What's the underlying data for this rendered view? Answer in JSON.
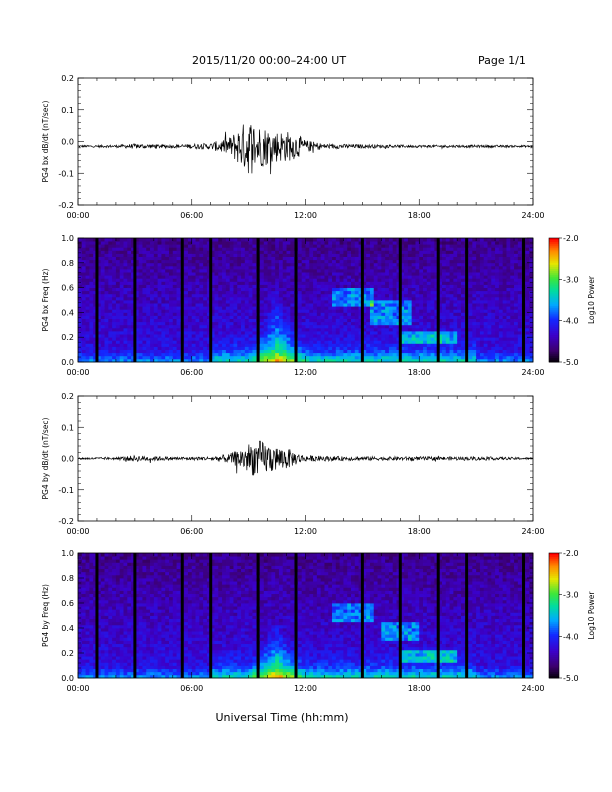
{
  "header": {
    "title": "2015/11/20  00:00–24:00 UT",
    "page": "Page 1/1"
  },
  "chart_data": [
    {
      "type": "line",
      "ylabel": "PG4 bx dB/dt (nT/sec)",
      "xlim": [
        0,
        24
      ],
      "ylim": [
        -0.2,
        0.2
      ],
      "xticks": [
        "00:00",
        "06:00",
        "12:00",
        "18:00",
        "24:00"
      ],
      "yticks": [
        "0.2",
        "0.1",
        "0.0",
        "-0.1",
        "-0.2"
      ],
      "series": [
        {
          "x": [
            0,
            2,
            3,
            5,
            7,
            8,
            8.5,
            9,
            9.5,
            10,
            10.5,
            11,
            11.5,
            12,
            13,
            15,
            18,
            21,
            24
          ],
          "envelope": [
            0.003,
            0.004,
            0.008,
            0.005,
            0.01,
            0.03,
            0.06,
            0.09,
            0.07,
            0.06,
            0.05,
            0.05,
            0.04,
            0.02,
            0.008,
            0.006,
            0.004,
            0.004,
            0.003
          ],
          "baseline": -0.015
        }
      ]
    },
    {
      "type": "heatmap",
      "ylabel": "PG4 bx Freq (Hz)",
      "xlim": [
        0,
        24
      ],
      "ylim": [
        0,
        1.0
      ],
      "xticks": [
        "00:00",
        "06:00",
        "12:00",
        "18:00",
        "24:00"
      ],
      "yticks": [
        "1.0",
        "0.8",
        "0.6",
        "0.4",
        "0.2",
        "0.0"
      ],
      "colorbar": {
        "label": "Log10 Power",
        "ticks": [
          "-2.0",
          "-3.0",
          "-4.0",
          "-5.0"
        ],
        "range": [
          -5.0,
          -2.0
        ]
      },
      "gap_hours": [
        1,
        3,
        5.5,
        7,
        9.5,
        11.5,
        15,
        17,
        19,
        20.5,
        23.5
      ],
      "features": [
        {
          "desc": "broadband enhancement",
          "t": 10.5,
          "fmax": 0.6
        },
        {
          "desc": "band",
          "t": [
            13.5,
            15.5
          ],
          "f": [
            0.45,
            0.6
          ]
        },
        {
          "desc": "band",
          "t": [
            15.5,
            17.5
          ],
          "f": [
            0.3,
            0.5
          ]
        },
        {
          "desc": "band",
          "t": [
            17,
            20
          ],
          "f": [
            0.15,
            0.25
          ]
        }
      ]
    },
    {
      "type": "line",
      "ylabel": "PG4 by dB/dt (nT/sec)",
      "xlim": [
        0,
        24
      ],
      "ylim": [
        -0.2,
        0.2
      ],
      "xticks": [
        "00:00",
        "06:00",
        "12:00",
        "18:00",
        "24:00"
      ],
      "yticks": [
        "0.2",
        "0.1",
        "0.0",
        "-0.1",
        "-0.2"
      ],
      "series": [
        {
          "x": [
            0,
            2,
            3,
            5,
            7,
            8,
            8.5,
            9,
            9.5,
            10,
            10.5,
            11,
            11.5,
            12,
            13,
            15,
            18,
            21,
            24
          ],
          "envelope": [
            0.003,
            0.004,
            0.01,
            0.005,
            0.006,
            0.015,
            0.03,
            0.05,
            0.06,
            0.05,
            0.04,
            0.035,
            0.02,
            0.01,
            0.008,
            0.006,
            0.006,
            0.006,
            0.003
          ],
          "baseline": 0.0
        }
      ]
    },
    {
      "type": "heatmap",
      "ylabel": "PG4 by Freq (Hz)",
      "xlim": [
        0,
        24
      ],
      "ylim": [
        0,
        1.0
      ],
      "xticks": [
        "00:00",
        "06:00",
        "12:00",
        "18:00",
        "24:00"
      ],
      "yticks": [
        "1.0",
        "0.8",
        "0.6",
        "0.4",
        "0.2",
        "0.0"
      ],
      "colorbar": {
        "label": "Log10 Power",
        "ticks": [
          "-2.0",
          "-3.0",
          "-4.0",
          "-5.0"
        ],
        "range": [
          -5.0,
          -2.0
        ]
      },
      "gap_hours": [
        1,
        3,
        5.5,
        7,
        9.5,
        11.5,
        15,
        17,
        19,
        20.5,
        23.5
      ],
      "features": [
        {
          "desc": "broadband enhancement",
          "t": 10.5,
          "fmax": 0.5
        },
        {
          "desc": "band",
          "t": [
            13.5,
            15.5
          ],
          "f": [
            0.45,
            0.6
          ]
        },
        {
          "desc": "band",
          "t": [
            16,
            18
          ],
          "f": [
            0.3,
            0.45
          ]
        },
        {
          "desc": "band",
          "t": [
            17,
            20
          ],
          "f": [
            0.12,
            0.22
          ]
        }
      ]
    }
  ],
  "xaxis_title": "Universal Time (hh:mm)"
}
